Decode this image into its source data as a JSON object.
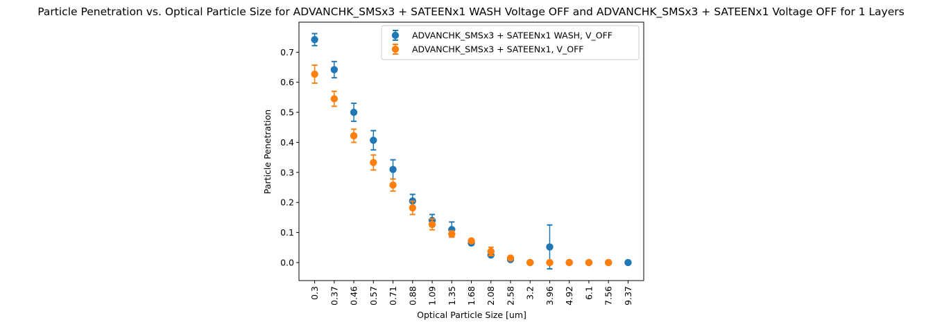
{
  "chart_data": {
    "type": "scatter",
    "title": "Particle Penetration vs. Optical Particle Size for ADVANCHK_SMSx3 + SATEENx1 WASH Voltage OFF and ADVANCHK_SMSx3 + SATEENx1 Voltage OFF for 1 Layers",
    "xlabel": "Optical Particle Size [um]",
    "ylabel": "Particle Penetration",
    "categories": [
      "0.3",
      "0.37",
      "0.46",
      "0.57",
      "0.71",
      "0.88",
      "1.09",
      "1.35",
      "1.68",
      "2.08",
      "2.58",
      "3.2",
      "3.96",
      "4.92",
      "6.1",
      "7.56",
      "9.37"
    ],
    "ylim": [
      -0.06,
      0.8
    ],
    "yticks": [
      "0.0",
      "0.1",
      "0.2",
      "0.3",
      "0.4",
      "0.5",
      "0.6",
      "0.7"
    ],
    "grid": false,
    "legend_position": "upper right",
    "series": [
      {
        "name": "ADVANCHK_SMSx3 + SATEENx1 WASH, V_OFF",
        "color": "#1f77b4",
        "values": [
          0.742,
          0.642,
          0.5,
          0.407,
          0.31,
          0.205,
          0.14,
          0.11,
          0.065,
          0.025,
          0.01,
          0.0,
          0.052,
          0.0,
          0.0,
          0.0,
          0.0
        ],
        "errors": [
          0.02,
          0.027,
          0.03,
          0.032,
          0.032,
          0.022,
          0.02,
          0.025,
          0.007,
          0.005,
          0.004,
          0.001,
          0.073,
          0.001,
          0.001,
          0.001,
          0.001
        ]
      },
      {
        "name": "ADVANCHK_SMSx3 + SATEENx1, V_OFF",
        "color": "#ff7f0e",
        "values": [
          0.627,
          0.545,
          0.422,
          0.333,
          0.258,
          0.182,
          0.127,
          0.095,
          0.072,
          0.037,
          0.015,
          0.0,
          0.0,
          0.0,
          0.0,
          0.0,
          null
        ],
        "errors": [
          0.03,
          0.025,
          0.022,
          0.025,
          0.02,
          0.022,
          0.018,
          0.01,
          0.007,
          0.014,
          0.004,
          0.001,
          0.001,
          0.001,
          0.001,
          0.001,
          null
        ]
      }
    ]
  }
}
